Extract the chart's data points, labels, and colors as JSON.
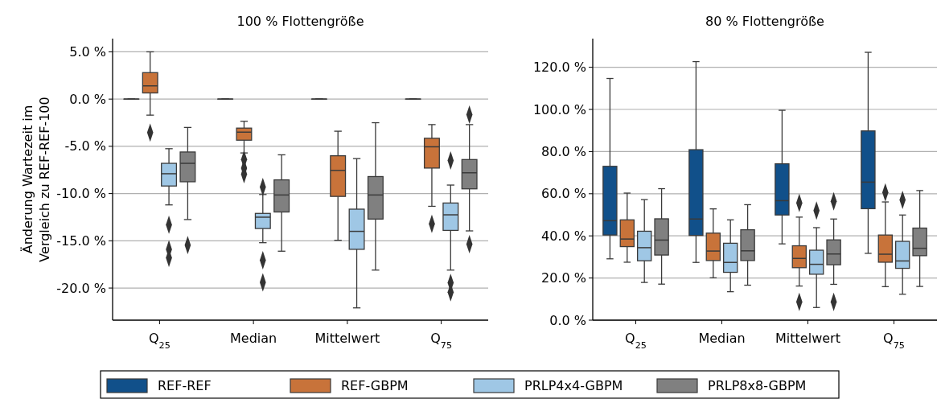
{
  "chart_data": [
    {
      "type": "box",
      "title": "100 % Flottengröße",
      "ylabel": "Änderung Wartezeit im\nVergleich zu REF-REF-100",
      "categories": [
        "Q$_{25}$",
        "Median",
        "Mittelwert",
        "Q$_{75}$"
      ],
      "ylim": [
        -23.4,
        6.4
      ],
      "yticks": [
        {
          "value": 5,
          "label": "5.0 %"
        },
        {
          "value": 0,
          "label": "0.0 %"
        },
        {
          "value": -5,
          "label": "-5.0 %"
        },
        {
          "value": -10,
          "label": "-10.0 %"
        },
        {
          "value": -15,
          "label": "-15.0 %"
        },
        {
          "value": -20,
          "label": "-20.0 %"
        }
      ],
      "grid": "y",
      "legend": "bottom",
      "marker": "diamond",
      "series": [
        {
          "name": "REF-REF",
          "color": "#11508a",
          "boxes": [
            {
              "low": 0,
              "q1": 0,
              "median": 0,
              "q3": 0,
              "high": 0
            },
            {
              "low": 0,
              "q1": 0,
              "median": 0,
              "q3": 0,
              "high": 0
            },
            {
              "low": 0,
              "q1": 0,
              "median": 0,
              "q3": 0,
              "high": 0
            },
            {
              "low": 0,
              "q1": 0,
              "median": 0,
              "q3": 0,
              "high": 0
            }
          ]
        },
        {
          "name": "REF-GBPM",
          "color": "#c8733a",
          "boxes": [
            {
              "low": -1.7,
              "q1": 0.65,
              "median": 1.4,
              "q3": 2.8,
              "high": 5.0,
              "outliers": [
                -3.55
              ]
            },
            {
              "low": -5.7,
              "q1": -4.35,
              "median": -3.5,
              "q3": -3.07,
              "high": -2.35,
              "outliers": [
                -6.4,
                -7.3,
                -7.95
              ]
            },
            {
              "low": -14.95,
              "q1": -10.3,
              "median": -7.55,
              "q3": -6.0,
              "high": -3.4
            },
            {
              "low": -11.35,
              "q1": -7.3,
              "median": -5.05,
              "q3": -4.15,
              "high": -2.7,
              "outliers": [
                -13.2
              ]
            }
          ]
        },
        {
          "name": "PRLP4x4-GBPM",
          "color": "#9fc7e5",
          "boxes": [
            {
              "low": -11.2,
              "q1": -9.2,
              "median": -7.9,
              "q3": -6.8,
              "high": -5.25,
              "outliers": [
                -13.3,
                -15.9,
                -16.8
              ]
            },
            {
              "low": -15.2,
              "q1": -13.7,
              "median": -12.5,
              "q3": -12.1,
              "high": -10.1,
              "outliers": [
                -9.3,
                -17.05,
                -19.4
              ]
            },
            {
              "low": -22.1,
              "q1": -15.9,
              "median": -14.0,
              "q3": -11.65,
              "high": -6.3
            },
            {
              "low": -18.1,
              "q1": -13.9,
              "median": -12.25,
              "q3": -11.0,
              "high": -9.1,
              "outliers": [
                -6.5,
                -19.45,
                -20.45
              ]
            }
          ]
        },
        {
          "name": "PRLP8x8-GBPM",
          "color": "#808080",
          "boxes": [
            {
              "low": -12.75,
              "q1": -8.75,
              "median": -6.8,
              "q3": -5.6,
              "high": -3.0,
              "outliers": [
                -15.45
              ]
            },
            {
              "low": -16.1,
              "q1": -11.95,
              "median": -10.15,
              "q3": -8.55,
              "high": -5.9
            },
            {
              "low": -18.1,
              "q1": -12.7,
              "median": -10.15,
              "q3": -8.2,
              "high": -2.5
            },
            {
              "low": -13.95,
              "q1": -9.5,
              "median": -7.8,
              "q3": -6.4,
              "high": -2.7,
              "outliers": [
                -1.65,
                -15.35
              ]
            }
          ]
        }
      ]
    },
    {
      "type": "box",
      "title": "80 % Flottengröße",
      "categories": [
        "Q$_{25}$",
        "Median",
        "Mittelwert",
        "Q$_{75}$"
      ],
      "ylim": [
        0,
        133.6
      ],
      "yticks": [
        {
          "value": 0,
          "label": "0.0 %"
        },
        {
          "value": 20,
          "label": "20.0 %"
        },
        {
          "value": 40,
          "label": "40.0 %"
        },
        {
          "value": 60,
          "label": "60.0 %"
        },
        {
          "value": 80,
          "label": "80.0 %"
        },
        {
          "value": 100,
          "label": "100.0 %"
        },
        {
          "value": 120,
          "label": "120.0 %"
        }
      ],
      "grid": "y",
      "marker": "diamond",
      "series": [
        {
          "color": "#11508a",
          "boxes": [
            {
              "low": 29.1,
              "q1": 40.4,
              "median": 47.2,
              "q3": 73.0,
              "high": 114.7
            },
            {
              "low": 27.4,
              "q1": 40.2,
              "median": 48.0,
              "q3": 80.9,
              "high": 122.7
            },
            {
              "low": 36.2,
              "q1": 49.9,
              "median": 56.7,
              "q3": 74.2,
              "high": 99.6
            },
            {
              "low": 31.7,
              "q1": 52.9,
              "median": 65.5,
              "q3": 89.8,
              "high": 127.1
            }
          ]
        },
        {
          "color": "#c8733a",
          "boxes": [
            {
              "low": 27.5,
              "q1": 34.9,
              "median": 38.5,
              "q3": 47.6,
              "high": 60.3
            },
            {
              "low": 20.1,
              "q1": 28.3,
              "median": 32.8,
              "q3": 41.3,
              "high": 52.8
            },
            {
              "low": 16.2,
              "q1": 24.9,
              "median": 29.3,
              "q3": 35.3,
              "high": 48.9,
              "outliers": [
                55.6,
                8.7
              ]
            },
            {
              "low": 15.9,
              "q1": 27.5,
              "median": 31.3,
              "q3": 40.4,
              "high": 56.1,
              "outliers": [
                60.6
              ]
            }
          ]
        },
        {
          "color": "#9fc7e5",
          "boxes": [
            {
              "low": 17.9,
              "q1": 28.2,
              "median": 34.4,
              "q3": 42.2,
              "high": 57.2
            },
            {
              "low": 13.5,
              "q1": 22.7,
              "median": 27.4,
              "q3": 36.5,
              "high": 47.6
            },
            {
              "low": 6.0,
              "q1": 21.8,
              "median": 26.5,
              "q3": 33.2,
              "high": 43.9,
              "outliers": [
                52.0
              ]
            },
            {
              "low": 12.3,
              "q1": 24.6,
              "median": 28.1,
              "q3": 37.4,
              "high": 49.9,
              "outliers": [
                57.1
              ]
            }
          ]
        },
        {
          "color": "#808080",
          "boxes": [
            {
              "low": 17.1,
              "q1": 30.9,
              "median": 38.0,
              "q3": 48.1,
              "high": 62.4
            },
            {
              "low": 16.6,
              "q1": 28.3,
              "median": 32.9,
              "q3": 42.9,
              "high": 54.8
            },
            {
              "low": 17.0,
              "q1": 26.3,
              "median": 31.4,
              "q3": 38.1,
              "high": 48.0,
              "outliers": [
                56.4,
                8.7
              ]
            },
            {
              "low": 16.0,
              "q1": 30.6,
              "median": 34.1,
              "q3": 43.7,
              "high": 61.5
            }
          ]
        }
      ]
    }
  ]
}
